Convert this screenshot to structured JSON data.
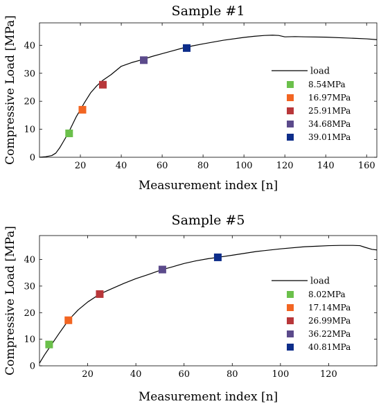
{
  "chart_data": [
    {
      "type": "line",
      "title": "Sample #1",
      "xlabel": "Measurement index [n]",
      "ylabel": "Compressive Load [MPa]",
      "xlim": [
        0,
        165
      ],
      "ylim": [
        0,
        48
      ],
      "xticks": [
        20,
        40,
        60,
        80,
        100,
        120,
        140,
        160
      ],
      "yticks": [
        0,
        10,
        20,
        30,
        40
      ],
      "legend_position": "right",
      "series": [
        {
          "name": "load",
          "color": "#000000",
          "x": [
            0,
            3,
            6,
            8,
            10,
            12,
            14,
            16,
            18,
            20,
            22,
            25,
            28,
            31,
            35,
            40,
            45,
            50,
            55,
            60,
            65,
            70,
            75,
            80,
            90,
            100,
            105,
            110,
            114,
            117,
            120,
            125,
            130,
            140,
            150,
            160,
            165
          ],
          "y": [
            0,
            0.2,
            0.6,
            1.5,
            3.5,
            6.0,
            8.5,
            11.5,
            14.5,
            17.0,
            19.5,
            23.0,
            25.5,
            27.5,
            29.5,
            32.5,
            33.8,
            34.8,
            36.0,
            37.0,
            38.0,
            39.0,
            39.8,
            40.5,
            41.8,
            42.8,
            43.2,
            43.5,
            43.6,
            43.5,
            43.0,
            43.1,
            43.0,
            42.9,
            42.6,
            42.3,
            42.0
          ]
        }
      ],
      "markers": [
        {
          "label": "8.54MPa",
          "x": 14.5,
          "y": 8.54,
          "color": "#6bc04b"
        },
        {
          "label": "16.97MPa",
          "x": 21,
          "y": 16.97,
          "color": "#f26522"
        },
        {
          "label": "25.91MPa",
          "x": 31,
          "y": 25.91,
          "color": "#b8373a"
        },
        {
          "label": "34.68MPa",
          "x": 51,
          "y": 34.68,
          "color": "#5b4a8b"
        },
        {
          "label": "39.01MPa",
          "x": 72,
          "y": 39.01,
          "color": "#0d2d8a"
        }
      ]
    },
    {
      "type": "line",
      "title": "Sample #5",
      "xlabel": "Measurement index [n]",
      "ylabel": "Compressive Load [MPa]",
      "xlim": [
        0,
        140
      ],
      "ylim": [
        0,
        49
      ],
      "xticks": [
        20,
        40,
        60,
        80,
        100,
        120
      ],
      "yticks": [
        0,
        10,
        20,
        30,
        40
      ],
      "legend_position": "right",
      "series": [
        {
          "name": "load",
          "color": "#000000",
          "x": [
            0,
            2,
            5,
            8,
            12,
            16,
            20,
            25,
            30,
            35,
            40,
            45,
            51,
            55,
            60,
            65,
            70,
            74,
            80,
            90,
            100,
            110,
            115,
            120,
            125,
            130,
            133,
            135,
            138,
            140
          ],
          "y": [
            1.0,
            4.0,
            8.0,
            12.0,
            17.14,
            21.0,
            24.0,
            26.99,
            29.0,
            31.0,
            32.8,
            34.3,
            36.22,
            37.2,
            38.5,
            39.5,
            40.3,
            40.81,
            41.6,
            43.0,
            44.0,
            44.8,
            45.0,
            45.2,
            45.3,
            45.3,
            45.2,
            44.6,
            43.8,
            43.6
          ]
        }
      ],
      "markers": [
        {
          "label": "8.02MPa",
          "x": 4,
          "y": 8.02,
          "color": "#6bc04b"
        },
        {
          "label": "17.14MPa",
          "x": 12,
          "y": 17.14,
          "color": "#f26522"
        },
        {
          "label": "26.99MPa",
          "x": 25,
          "y": 26.99,
          "color": "#b8373a"
        },
        {
          "label": "36.22MPa",
          "x": 51,
          "y": 36.22,
          "color": "#5b4a8b"
        },
        {
          "label": "40.81MPa",
          "x": 74,
          "y": 40.81,
          "color": "#0d2d8a"
        }
      ]
    }
  ]
}
